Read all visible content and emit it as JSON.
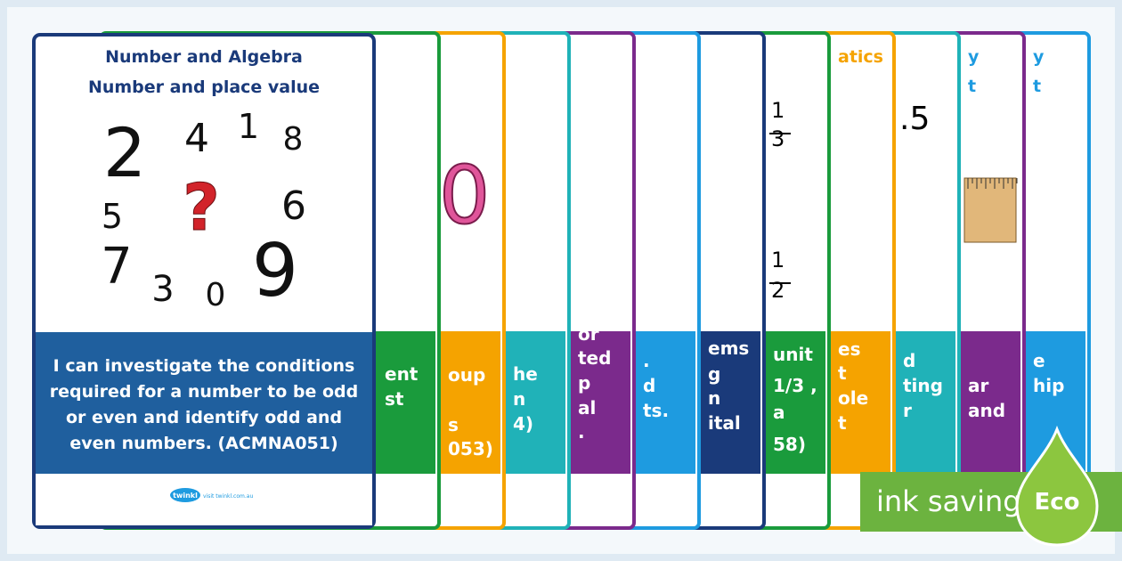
{
  "front": {
    "title": "Number and Algebra",
    "subtitle": "Number and place value",
    "digits": [
      "2",
      "4",
      "1",
      "8",
      "5",
      "?",
      "6",
      "7",
      "3",
      "0",
      "9"
    ],
    "statement": [
      "I can investigate the conditions",
      "required for a number to be odd",
      "or even and identify odd and",
      "even numbers. (ACMNA051)"
    ],
    "logo": "twinkl",
    "url": "visit twinkl.com.au"
  },
  "back_cards": [
    {
      "color": "#1a9b3c",
      "panel": [
        "ent",
        "st"
      ]
    },
    {
      "color": "#f5a300",
      "art": [
        "0"
      ],
      "panel": [
        "oup",
        "s",
        "053)"
      ]
    },
    {
      "color": "#20b2b8",
      "panel": [
        "he",
        "n",
        "4)"
      ]
    },
    {
      "color": "#7b2a8c",
      "panel": [
        "or",
        "ted",
        "p",
        "al",
        "."
      ]
    },
    {
      "color": "#1e9be0",
      "panel": [
        ".",
        "d",
        "ts."
      ]
    },
    {
      "color": "#1a3a7a",
      "panel": [
        "ems",
        "g",
        "n",
        "ital"
      ]
    },
    {
      "color": "#1a9b3c",
      "art": [
        "1",
        "3",
        "1",
        "2"
      ],
      "panel": [
        "unit",
        "1/3 ,",
        "a",
        "58)"
      ]
    },
    {
      "color": "#f5a300",
      "title": [
        "atics"
      ],
      "panel": [
        "es",
        "t",
        "ole",
        "t"
      ]
    },
    {
      "color": "#20b2b8",
      "art": [
        ".5"
      ],
      "panel": [
        "d",
        "ting",
        "r"
      ]
    },
    {
      "color": "#7b2a8c",
      "title": [
        "y",
        "t"
      ],
      "panel": [
        "ar",
        "and"
      ]
    },
    {
      "color": "#1e9be0",
      "title": [
        "y",
        "t"
      ],
      "panel": [
        "e",
        "hip"
      ]
    }
  ],
  "badge": {
    "label": "ink saving",
    "eco": "Eco"
  }
}
